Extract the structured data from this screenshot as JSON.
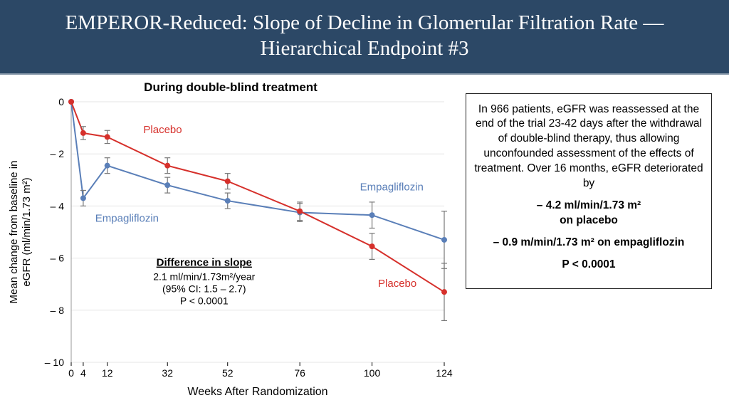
{
  "header": {
    "title": "EMPEROR-Reduced: Slope of Decline in Glomerular Filtration Rate — Hierarchical Endpoint #3"
  },
  "chart": {
    "title": "During double-blind treatment",
    "type": "line",
    "xlabel": "Weeks After Randomization",
    "ylabel_line1": "Mean change from baseline in",
    "ylabel_line2": "eGFR (ml/min/1.73 m²)",
    "xticks": [
      0,
      4,
      12,
      32,
      52,
      76,
      100,
      124
    ],
    "yticks": [
      0,
      -2,
      -4,
      -6,
      -8,
      -10
    ],
    "ytick_labels": [
      "0",
      "– 2",
      "– 4",
      "– 6",
      "– 8",
      "– 10"
    ],
    "xlim": [
      0,
      124
    ],
    "ylim": [
      -10,
      0
    ],
    "grid_color": "#e5e5e5",
    "background": "#ffffff",
    "series": {
      "placebo": {
        "label": "Placebo",
        "color": "#d6302b",
        "x": [
          0,
          4,
          12,
          32,
          52,
          76,
          100,
          124
        ],
        "y": [
          0,
          -1.2,
          -1.35,
          -2.45,
          -3.05,
          -4.2,
          -5.55,
          -7.3
        ],
        "err": [
          0,
          0.25,
          0.25,
          0.3,
          0.3,
          0.35,
          0.5,
          1.1
        ]
      },
      "empagliflozin": {
        "label": "Empagliflozin",
        "color": "#5a7fb8",
        "x": [
          0,
          4,
          12,
          32,
          52,
          76,
          100,
          124
        ],
        "y": [
          0,
          -3.7,
          -2.45,
          -3.2,
          -3.8,
          -4.25,
          -4.35,
          -5.3
        ],
        "err": [
          0,
          0.3,
          0.3,
          0.3,
          0.3,
          0.35,
          0.5,
          1.1
        ]
      }
    },
    "diffbox": {
      "title": "Difference in slope",
      "line1": "2.1 ml/min/1.73m²/year",
      "line2": "(95% CI: 1.5 – 2.7)",
      "line3": "P < 0.0001"
    },
    "annotations": {
      "placebo_top": "Placebo",
      "placebo_bottom": "Placebo",
      "empa_left": "Empagliflozin",
      "empa_right": "Empagliflozin"
    }
  },
  "info": {
    "para": "In 966 patients, eGFR was reassessed at the end of the trial 23-42 days after the withdrawal of double-blind therapy, thus allowing unconfounded assessment of the effects of treatment.  Over 16 months, eGFR deteriorated by",
    "placebo_val": "– 4.2 ml/min/1.73 m²",
    "placebo_sub": "on placebo",
    "empa_val": "– 0.9 m/min/1.73 m² on empagliflozin",
    "pval": "P < 0.0001"
  }
}
